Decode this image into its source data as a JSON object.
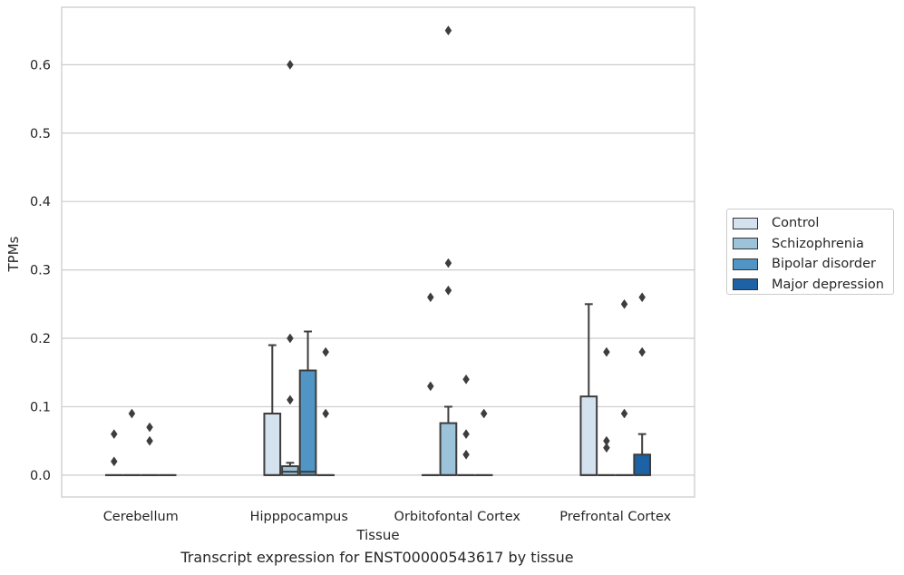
{
  "chart_data": {
    "type": "box",
    "caption": "Transcript expression for ENST00000543617 by tissue",
    "xlabel": "Tissue",
    "ylabel": "TPMs",
    "ylim": [
      -0.032,
      0.684
    ],
    "yticks": [
      0.0,
      0.1,
      0.2,
      0.3,
      0.4,
      0.5,
      0.6
    ],
    "ytick_labels": [
      "0.0",
      "0.1",
      "0.2",
      "0.3",
      "0.4",
      "0.5",
      "0.6"
    ],
    "grid": "horizontal",
    "legend_position": "right",
    "categories": [
      "Cerebellum",
      "Hipppocampus",
      "Orbitofontal Cortex",
      "Prefrontal Cortex"
    ],
    "series": [
      {
        "name": "Control",
        "color": "#d4e1ef",
        "boxes": [
          {
            "q1": 0,
            "median": 0,
            "q3": 0,
            "whisker_low": 0,
            "whisker_high": 0,
            "outliers": [
              0.02,
              0.06
            ]
          },
          {
            "q1": 0,
            "median": 0,
            "q3": 0.09,
            "whisker_low": 0,
            "whisker_high": 0.19,
            "outliers": []
          },
          {
            "q1": 0,
            "median": 0,
            "q3": 0,
            "whisker_low": 0,
            "whisker_high": 0,
            "outliers": [
              0.13,
              0.26
            ]
          },
          {
            "q1": 0,
            "median": 0,
            "q3": 0.115,
            "whisker_low": 0,
            "whisker_high": 0.25,
            "outliers": []
          }
        ]
      },
      {
        "name": "Schizophrenia",
        "color": "#9dc3db",
        "boxes": [
          {
            "q1": 0,
            "median": 0,
            "q3": 0,
            "whisker_low": 0,
            "whisker_high": 0,
            "outliers": [
              0.09
            ]
          },
          {
            "q1": 0,
            "median": 0.005,
            "q3": 0.013,
            "whisker_low": 0,
            "whisker_high": 0.018,
            "outliers": [
              0.11,
              0.2,
              0.6
            ]
          },
          {
            "q1": 0,
            "median": 0,
            "q3": 0.076,
            "whisker_low": 0,
            "whisker_high": 0.1,
            "outliers": [
              0.27,
              0.31,
              0.65
            ]
          },
          {
            "q1": 0,
            "median": 0,
            "q3": 0,
            "whisker_low": 0,
            "whisker_high": 0,
            "outliers": [
              0.04,
              0.05,
              0.18
            ]
          }
        ]
      },
      {
        "name": "Bipolar disorder",
        "color": "#5095c4",
        "boxes": [
          {
            "q1": 0,
            "median": 0,
            "q3": 0,
            "whisker_low": 0,
            "whisker_high": 0,
            "outliers": [
              0.05,
              0.07
            ]
          },
          {
            "q1": 0,
            "median": 0.005,
            "q3": 0.153,
            "whisker_low": 0,
            "whisker_high": 0.21,
            "outliers": []
          },
          {
            "q1": 0,
            "median": 0,
            "q3": 0,
            "whisker_low": 0,
            "whisker_high": 0,
            "outliers": [
              0.03,
              0.06,
              0.14
            ]
          },
          {
            "q1": 0,
            "median": 0,
            "q3": 0,
            "whisker_low": 0,
            "whisker_high": 0,
            "outliers": [
              0.09,
              0.25
            ]
          }
        ]
      },
      {
        "name": "Major depression",
        "color": "#1c62a5",
        "boxes": [
          {
            "q1": 0,
            "median": 0,
            "q3": 0,
            "whisker_low": 0,
            "whisker_high": 0,
            "outliers": []
          },
          {
            "q1": 0,
            "median": 0,
            "q3": 0,
            "whisker_low": 0,
            "whisker_high": 0,
            "outliers": [
              0.09,
              0.18
            ]
          },
          {
            "q1": 0,
            "median": 0,
            "q3": 0,
            "whisker_low": 0,
            "whisker_high": 0,
            "outliers": [
              0.09
            ]
          },
          {
            "q1": 0,
            "median": 0,
            "q3": 0.03,
            "whisker_low": 0,
            "whisker_high": 0.06,
            "outliers": [
              0.18,
              0.26
            ]
          }
        ]
      }
    ]
  }
}
